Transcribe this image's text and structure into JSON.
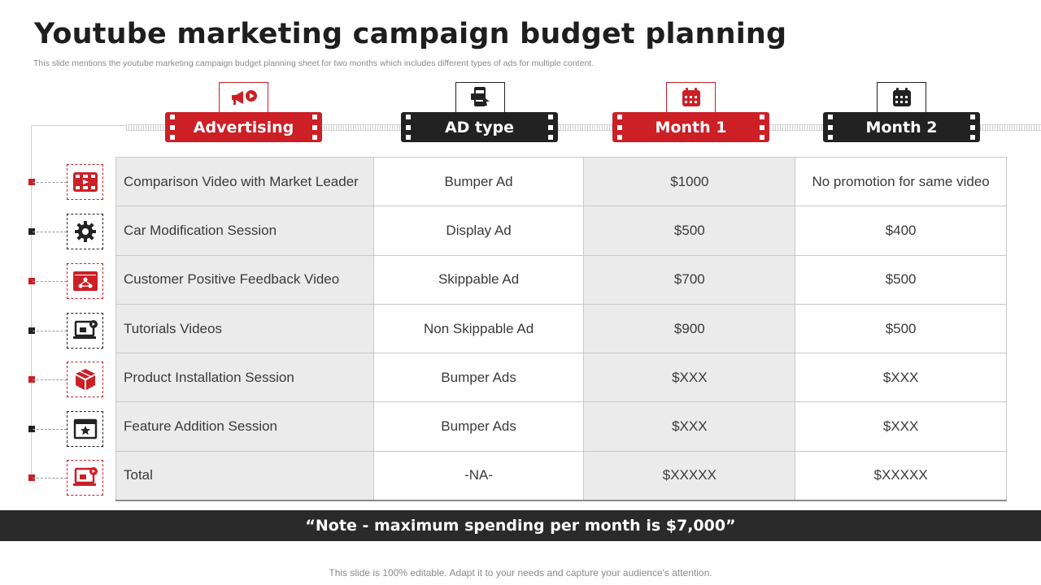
{
  "title": "Youtube marketing campaign budget planning",
  "subtitle": "This slide mentions the youtube marketing campaign budget planning sheet for two months which includes different types of ads for multiple content.",
  "colors": {
    "accent_red": "#cc1f26",
    "dark": "#222222"
  },
  "headers": [
    {
      "label": "Advertising",
      "icon": "megaphone-icon",
      "style": "red"
    },
    {
      "label": "AD type",
      "icon": "mobile-ad-icon",
      "style": "black"
    },
    {
      "label": "Month 1",
      "icon": "calendar-icon",
      "style": "red"
    },
    {
      "label": "Month 2",
      "icon": "calendar-icon",
      "style": "black"
    }
  ],
  "rows": [
    {
      "icon": "video-player-icon",
      "cells": [
        "Comparison Video with Market Leader",
        "Bumper Ad",
        "$1000",
        "No promotion for same video"
      ]
    },
    {
      "icon": "gear-icon",
      "cells": [
        "Car Modification Session",
        "Display Ad",
        "$500",
        "$400"
      ]
    },
    {
      "icon": "feedback-network-icon",
      "cells": [
        "Customer Positive Feedback Video",
        "Skippable Ad",
        "$700",
        "$500"
      ]
    },
    {
      "icon": "laptop-tutorial-icon",
      "cells": [
        "Tutorials Videos",
        "Non Skippable Ad",
        "$900",
        "$500"
      ]
    },
    {
      "icon": "product-box-icon",
      "cells": [
        "Product Installation Session",
        "Bumper Ads",
        "$XXX",
        "$XXX"
      ]
    },
    {
      "icon": "star-window-icon",
      "cells": [
        "Feature Addition Session",
        "Bumper Ads",
        "$XXX",
        "$XXX"
      ]
    },
    {
      "icon": "laptop-video-icon",
      "cells": [
        "Total",
        "-NA-",
        "$XXXXX",
        "$XXXXX"
      ]
    }
  ],
  "note": "“Note  -  maximum spending per month is $7,000”",
  "footer": "This slide is 100% editable. Adapt it to your needs and capture your audience's attention."
}
